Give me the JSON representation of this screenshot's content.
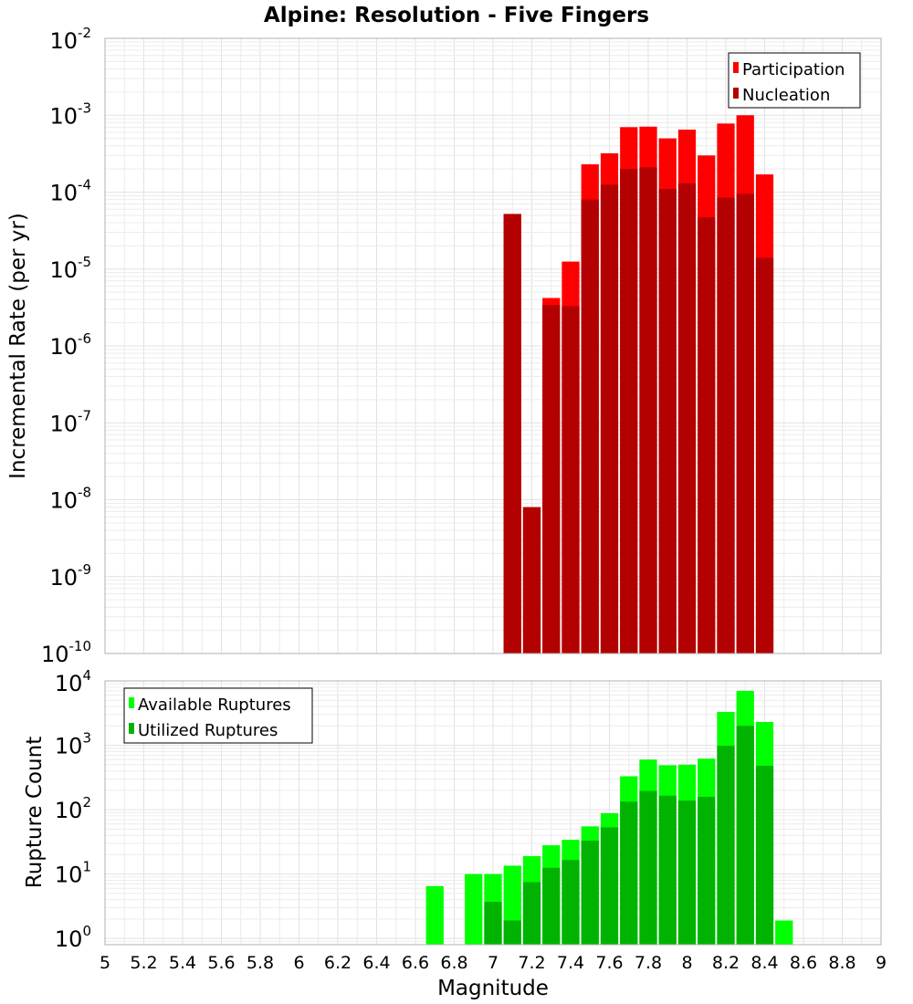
{
  "title": "Alpine: Resolution - Five Fingers",
  "colors": {
    "participation": "#ff0000",
    "nucleation": "#b30000",
    "available": "#00ff00",
    "utilized": "#00b300"
  },
  "chart_data": [
    {
      "type": "bar",
      "panel": "top",
      "ylabel": "Incremental Rate (per yr)",
      "yscale": "log",
      "ylim": [
        1e-10,
        0.01
      ],
      "xlim": [
        5,
        9
      ],
      "grid": true,
      "legend_position": "top-right",
      "x": [
        7.1,
        7.2,
        7.3,
        7.4,
        7.5,
        7.6,
        7.7,
        7.8,
        7.9,
        8.0,
        8.1,
        8.2,
        8.3,
        8.4,
        8.5
      ],
      "series": [
        {
          "name": "Participation",
          "color": "#ff0000",
          "values": [
            5.2e-05,
            8e-09,
            4.2e-06,
            1.25e-05,
            0.00023,
            0.00032,
            0.0007,
            0.00071,
            0.0005,
            0.00065,
            0.0003,
            0.00078,
            0.001,
            0.00017,
            null
          ]
        },
        {
          "name": "Nucleation",
          "color": "#b30000",
          "values": [
            5.2e-05,
            8e-09,
            3.4e-06,
            3.3e-06,
            8e-05,
            0.000125,
            0.0002,
            0.00021,
            0.00011,
            0.00013,
            4.7e-05,
            8.5e-05,
            9.5e-05,
            1.4e-05,
            null
          ]
        }
      ]
    },
    {
      "type": "bar",
      "panel": "bottom",
      "xlabel": "Magnitude",
      "ylabel": "Rupture Count",
      "yscale": "log",
      "ylim": [
        0.8,
        10000.0
      ],
      "xlim": [
        5,
        9
      ],
      "grid": true,
      "legend_position": "top-left",
      "x": [
        6.7,
        6.8,
        6.9,
        7.0,
        7.1,
        7.2,
        7.3,
        7.4,
        7.5,
        7.6,
        7.7,
        7.8,
        7.9,
        8.0,
        8.1,
        8.2,
        8.3,
        8.4,
        8.5
      ],
      "series": [
        {
          "name": "Available Ruptures",
          "color": "#00ff00",
          "values": [
            6.5,
            null,
            10,
            10,
            13.5,
            19,
            28,
            34,
            55,
            88,
            330,
            600,
            490,
            500,
            620,
            3300,
            7000,
            2300,
            1.9
          ]
        },
        {
          "name": "Utilized Ruptures",
          "color": "#00b300",
          "values": [
            null,
            null,
            null,
            3.7,
            1.9,
            7.5,
            12.5,
            16.5,
            33,
            53,
            133,
            195,
            165,
            138,
            158,
            980,
            2000,
            480,
            null
          ]
        }
      ]
    }
  ],
  "x_ticks": [
    "5",
    "5.2",
    "5.4",
    "5.6",
    "5.8",
    "6",
    "6.2",
    "6.4",
    "6.6",
    "6.8",
    "7",
    "7.2",
    "7.4",
    "7.6",
    "7.8",
    "8",
    "8.2",
    "8.4",
    "8.6",
    "8.8",
    "9"
  ],
  "top_y_ticks": {
    "base": "10",
    "exponents": [
      "-2",
      "-3",
      "-4",
      "-5",
      "-6",
      "-7",
      "-8",
      "-9",
      "-10"
    ]
  },
  "bottom_y_ticks": {
    "base": "10",
    "exponents": [
      "4",
      "3",
      "2",
      "1",
      "0"
    ]
  }
}
